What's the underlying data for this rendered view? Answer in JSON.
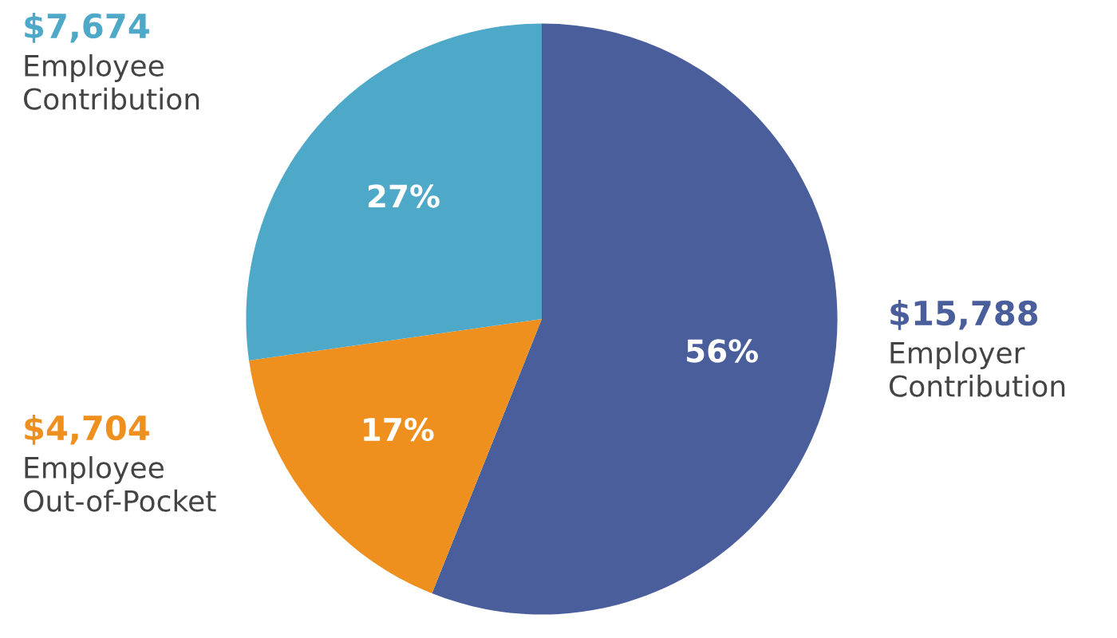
{
  "chart_data": {
    "type": "pie",
    "categories": [
      "Employer Contribution",
      "Employee Out-of-Pocket",
      "Employee Contribution"
    ],
    "values": [
      15788,
      4704,
      7674
    ],
    "value_labels": [
      "$15,788",
      "$4,704",
      "$7,674"
    ],
    "colors": [
      "#4a5e9c",
      "#ee8f1e",
      "#4ea9c9"
    ],
    "annotations": [
      "56%",
      "17%",
      "27%"
    ],
    "legend": false
  }
}
